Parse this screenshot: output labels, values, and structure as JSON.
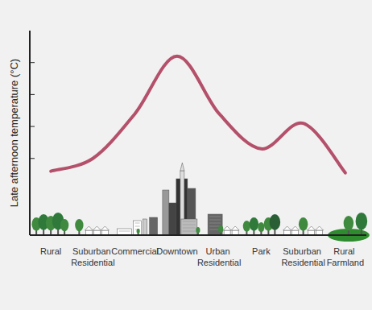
{
  "chart_data": {
    "type": "line",
    "y_label": "Late afternoon temperature (°C)",
    "categories": [
      "Rural",
      "Suburban Residential",
      "Commercial",
      "Downtown",
      "Urban Residential",
      "Park",
      "Suburban Residential",
      "Rural Farmland"
    ],
    "values": [
      2.0,
      2.4,
      3.8,
      5.6,
      3.8,
      2.7,
      3.5,
      1.95
    ],
    "color": "#b4506a",
    "ylim": [
      0,
      6.4
    ],
    "yticks": [
      2.4,
      3.4,
      4.4,
      5.4
    ],
    "grid": false,
    "tick_labels": "x"
  }
}
